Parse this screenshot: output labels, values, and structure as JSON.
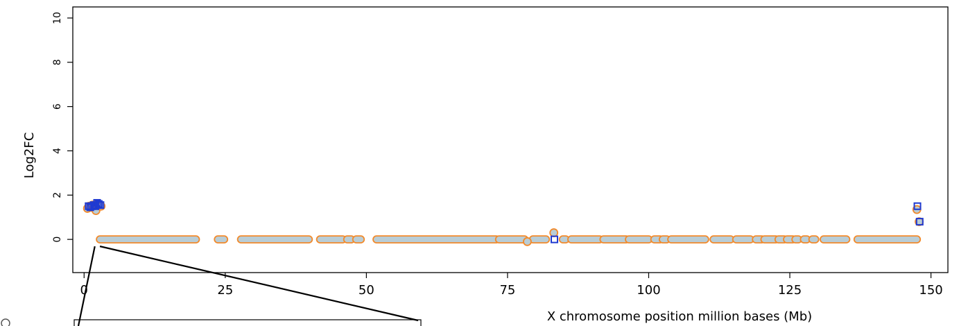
{
  "chart_data": {
    "type": "scatter",
    "title": "",
    "xlabel": "X chromosome position million bases (Mb)",
    "ylabel": "Log2FC",
    "xlim": [
      -2,
      153
    ],
    "ylim": [
      -1.5,
      10.5
    ],
    "x_ticks": [
      0,
      25,
      50,
      75,
      100,
      125,
      150
    ],
    "x_tick_labels": [
      "0",
      "25",
      "50",
      "75",
      "100",
      "125",
      "150"
    ],
    "y_ticks": [
      0,
      2,
      4,
      6,
      8,
      10
    ],
    "y_tick_labels": [
      "0",
      "2",
      "4",
      "6",
      "8",
      "10"
    ],
    "grid": false,
    "legend": "none",
    "colors": {
      "circle_outline": "#f28a2b",
      "circle_fill": "#b9cdd6",
      "square_outline": "#1f3ad1",
      "zoom_lines": "#000000"
    },
    "series": [
      {
        "marker": "circle",
        "note_values": "orange-outlined circles",
        "points": [
          [
            0.6,
            1.4
          ],
          [
            0.9,
            1.5
          ],
          [
            1.2,
            1.45
          ],
          [
            1.5,
            1.55
          ],
          [
            1.8,
            1.5
          ],
          [
            2.1,
            1.3
          ],
          [
            2.4,
            1.6
          ],
          [
            2.7,
            1.55
          ],
          [
            3.0,
            1.5
          ],
          [
            83.2,
            0.3
          ],
          [
            147.5,
            1.35
          ],
          [
            147.9,
            0.8
          ],
          [
            78.5,
            -0.1
          ]
        ],
        "segments": [
          [
            2.8,
            19.8
          ],
          [
            23.7,
            24.8
          ],
          [
            27.8,
            39.8
          ],
          [
            41.8,
            45.8
          ],
          [
            46.6,
            47.3
          ],
          [
            48.2,
            49.0
          ],
          [
            51.8,
            73.0
          ],
          [
            73.5,
            78.0
          ],
          [
            79.5,
            81.8
          ],
          [
            84.8,
            85.3
          ],
          [
            86.3,
            91.3
          ],
          [
            92.0,
            96.0
          ],
          [
            96.5,
            100.0
          ],
          [
            101.0,
            102.0
          ],
          [
            102.5,
            103.2
          ],
          [
            104.0,
            110.0
          ],
          [
            111.5,
            114.5
          ],
          [
            115.5,
            118.0
          ],
          [
            119.0,
            120.0
          ],
          [
            120.5,
            122.5
          ],
          [
            123.0,
            124.0
          ],
          [
            124.5,
            125.5
          ],
          [
            126.0,
            126.5
          ],
          [
            127.5,
            128.0
          ],
          [
            129.0,
            129.5
          ],
          [
            131.0,
            135.0
          ],
          [
            137.0,
            147.5
          ]
        ]
      },
      {
        "marker": "square",
        "points": [
          [
            0.8,
            1.5
          ],
          [
            1.1,
            1.45
          ],
          [
            1.4,
            1.5
          ],
          [
            1.7,
            1.55
          ],
          [
            2.0,
            1.5
          ],
          [
            2.3,
            1.65
          ],
          [
            2.6,
            1.6
          ],
          [
            2.9,
            1.55
          ],
          [
            83.3,
            0.0
          ],
          [
            147.6,
            1.5
          ],
          [
            148.0,
            0.8
          ]
        ]
      }
    ],
    "inset_box": {
      "x_range_mb": [
        1.9,
        2.8
      ]
    }
  }
}
